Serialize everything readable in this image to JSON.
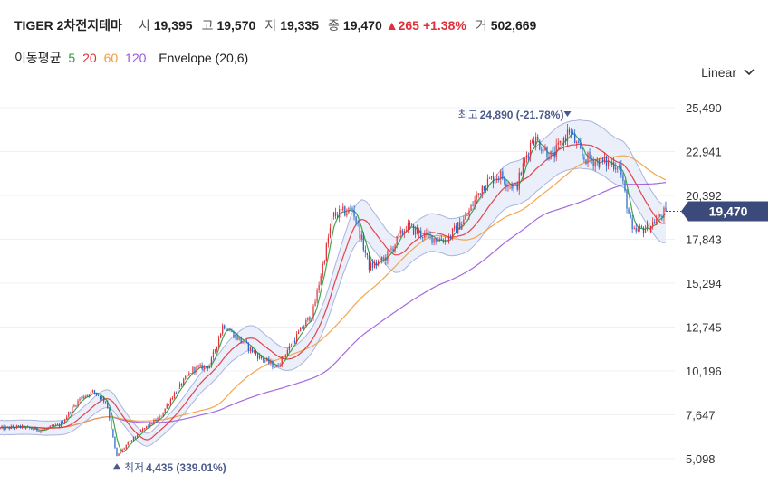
{
  "header": {
    "name": "TIGER 2차전지테마",
    "open_label": "시",
    "open": "19,395",
    "high_label": "고",
    "high": "19,570",
    "low_label": "저",
    "low": "19,335",
    "close_label": "종",
    "close": "19,470",
    "change": "▲265",
    "change_pct": "+1.38%",
    "volume_label": "거",
    "volume": "502,669"
  },
  "indicators": {
    "label": "이동평균",
    "ma": [
      {
        "period": "5",
        "color": "#2e9a3c"
      },
      {
        "period": "20",
        "color": "#e0303a"
      },
      {
        "period": "60",
        "color": "#f39c3c"
      },
      {
        "period": "120",
        "color": "#9b59d9"
      }
    ],
    "envelope": "Envelope (20,6)"
  },
  "scale_selector": {
    "label": "Linear"
  },
  "chart_data": {
    "type": "candlestick",
    "y_ticks": [
      "25,490",
      "22,941",
      "20,392",
      "17,843",
      "15,294",
      "12,745",
      "10,196",
      "7,647",
      "5,098"
    ],
    "ylim": [
      4400,
      26500
    ],
    "current_price": {
      "value": 19470,
      "label": "19,470"
    },
    "high_annotation": {
      "label": "최고",
      "value": "24,890",
      "pct": "(-21.78%)"
    },
    "low_annotation": {
      "label": "최저",
      "value": "4,435",
      "pct": "(339.01%)"
    },
    "price_path": [
      [
        0,
        6850
      ],
      [
        0.03,
        6950
      ],
      [
        0.06,
        6750
      ],
      [
        0.09,
        7050
      ],
      [
        0.12,
        8600
      ],
      [
        0.14,
        9000
      ],
      [
        0.16,
        8400
      ],
      [
        0.175,
        5200
      ],
      [
        0.19,
        5900
      ],
      [
        0.215,
        6800
      ],
      [
        0.24,
        7500
      ],
      [
        0.26,
        8800
      ],
      [
        0.29,
        10300
      ],
      [
        0.315,
        10500
      ],
      [
        0.335,
        12900
      ],
      [
        0.36,
        12000
      ],
      [
        0.39,
        11000
      ],
      [
        0.415,
        10400
      ],
      [
        0.44,
        11900
      ],
      [
        0.47,
        13600
      ],
      [
        0.5,
        19200
      ],
      [
        0.53,
        19600
      ],
      [
        0.555,
        16200
      ],
      [
        0.58,
        16800
      ],
      [
        0.61,
        18600
      ],
      [
        0.64,
        18000
      ],
      [
        0.67,
        17800
      ],
      [
        0.7,
        19100
      ],
      [
        0.725,
        21000
      ],
      [
        0.75,
        21600
      ],
      [
        0.775,
        20800
      ],
      [
        0.8,
        23800
      ],
      [
        0.83,
        22600
      ],
      [
        0.855,
        24200
      ],
      [
        0.875,
        22600
      ],
      [
        0.905,
        22300
      ],
      [
        0.93,
        22200
      ],
      [
        0.95,
        18200
      ],
      [
        0.975,
        18600
      ],
      [
        1.0,
        19470
      ]
    ],
    "ma_colors": {
      "ma5": "#2e9a3c",
      "ma20": "#e0303a",
      "ma60": "#f39c3c",
      "ma120": "#9b59d9"
    },
    "colors": {
      "up": "#e0303a",
      "down": "#2563c9",
      "envelope_fill": "#e3e8f8",
      "envelope_line": "#aab4dd",
      "badge": "#3b4a7a"
    }
  }
}
